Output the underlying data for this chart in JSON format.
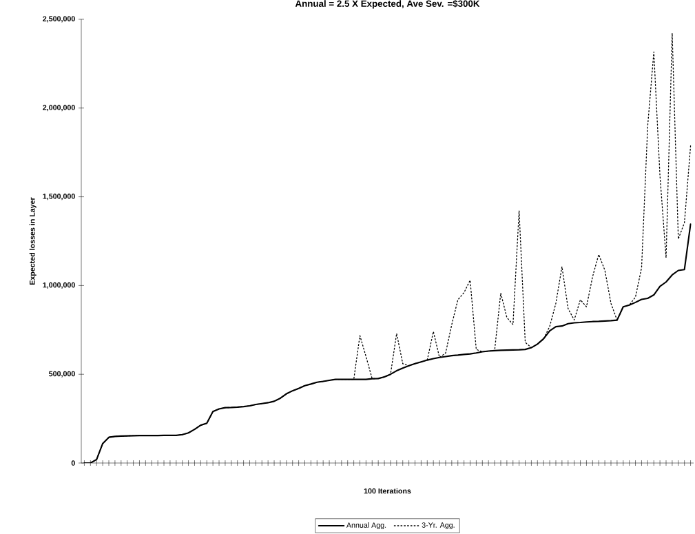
{
  "chart_data": {
    "type": "line",
    "title": "Annual = 2.5 X Expected, Ave Sev. =$300K",
    "xlabel": "100 Iterations",
    "ylabel": "Expected losses in Layer",
    "categories": [
      null,
      null,
      null,
      null,
      null,
      null,
      null,
      null,
      null,
      null,
      null,
      null,
      null,
      null,
      null,
      null,
      null,
      null,
      null,
      null,
      null,
      null,
      null,
      null,
      null,
      null,
      null,
      null,
      null,
      null,
      null,
      null,
      null,
      null,
      null,
      null,
      null,
      null,
      null,
      null,
      null,
      null,
      null,
      null,
      null,
      null,
      null,
      null,
      null,
      null,
      null,
      null,
      null,
      null,
      null,
      null,
      null,
      null,
      null,
      null,
      null,
      null,
      null,
      null,
      null,
      null,
      null,
      null,
      null,
      null,
      null,
      null,
      null,
      null,
      null,
      null,
      null,
      null,
      null,
      null,
      null,
      null,
      null,
      null,
      null,
      null,
      null,
      null,
      null,
      null,
      null,
      null,
      null,
      null,
      null,
      null,
      null,
      null,
      null,
      null
    ],
    "series": [
      {
        "name": "Annual Agg.",
        "color": "#000000",
        "line_style": "solid",
        "values": [
          0,
          0,
          20000,
          110000,
          145000,
          150000,
          152000,
          153000,
          154000,
          155000,
          155000,
          155000,
          155000,
          156000,
          156000,
          156000,
          160000,
          170000,
          190000,
          213000,
          224000,
          290000,
          305000,
          312000,
          313000,
          315000,
          318000,
          322000,
          330000,
          335000,
          340000,
          348000,
          365000,
          390000,
          407000,
          420000,
          436000,
          445000,
          455000,
          460000,
          466000,
          471000,
          471000,
          471000,
          471000,
          471000,
          471000,
          475000,
          476000,
          485000,
          500000,
          520000,
          535000,
          548000,
          560000,
          570000,
          580000,
          588000,
          595000,
          600000,
          605000,
          608000,
          612000,
          615000,
          620000,
          627000,
          631000,
          633000,
          635000,
          636000,
          637000,
          638000,
          640000,
          650000,
          670000,
          700000,
          745000,
          768000,
          772000,
          785000,
          790000,
          792000,
          795000,
          797000,
          798000,
          800000,
          802000,
          805000,
          880000,
          890000,
          905000,
          922000,
          928000,
          947000,
          995000,
          1020000,
          1060000,
          1085000,
          1090000,
          1346000
        ]
      },
      {
        "name": "3-Yr. Agg.",
        "color": "#000000",
        "line_style": "dotted",
        "values": [
          0,
          0,
          20000,
          110000,
          145000,
          150000,
          152000,
          153000,
          154000,
          155000,
          155000,
          155000,
          155000,
          156000,
          156000,
          156000,
          160000,
          170000,
          190000,
          213000,
          224000,
          290000,
          305000,
          312000,
          313000,
          315000,
          318000,
          322000,
          330000,
          335000,
          340000,
          348000,
          365000,
          390000,
          407000,
          420000,
          436000,
          445000,
          455000,
          460000,
          466000,
          471000,
          471000,
          471000,
          471000,
          718000,
          600000,
          475000,
          476000,
          485000,
          500000,
          730000,
          560000,
          548000,
          560000,
          570000,
          580000,
          741000,
          595000,
          620000,
          780000,
          920000,
          960000,
          1030000,
          640000,
          627000,
          631000,
          633000,
          958000,
          820000,
          780000,
          1422000,
          680000,
          650000,
          670000,
          700000,
          770000,
          900000,
          1106000,
          870000,
          806000,
          920000,
          880000,
          1050000,
          1175000,
          1087000,
          900000,
          805000,
          880000,
          890000,
          935000,
          1100000,
          1900000,
          2316000,
          1620000,
          1156000,
          2422000,
          1262000,
          1354000,
          1787000
        ]
      }
    ],
    "ylim": [
      0,
      2500000
    ],
    "yticks": [
      {
        "value": 0,
        "label": "0"
      },
      {
        "value": 500000,
        "label": "500,000"
      },
      {
        "value": 1000000,
        "label": "1,000,000"
      },
      {
        "value": 1500000,
        "label": "1,500,000"
      },
      {
        "value": 2000000,
        "label": "2,000,000"
      },
      {
        "value": 2500000,
        "label": "2,500,000"
      }
    ],
    "tick_labels": "y",
    "grid": false,
    "legend": "bottom",
    "marker": "none"
  }
}
